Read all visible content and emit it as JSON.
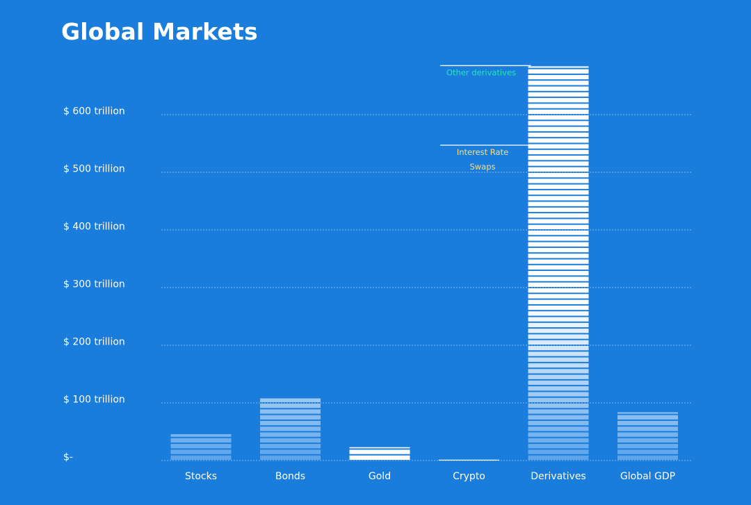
{
  "chart_data": {
    "type": "bar",
    "title": "Global Markets",
    "xlabel": "",
    "ylabel": "",
    "ylim": [
      0,
      690
    ],
    "yticks": [
      0,
      100,
      200,
      300,
      400,
      500,
      600
    ],
    "ytick_labels": [
      "$-",
      "$ 100 trillion",
      "$ 200 trillion",
      "$ 300 trillion",
      "$ 400 trillion",
      "$ 500 trillion",
      "$ 600 trillion"
    ],
    "categories": [
      "Stocks",
      "Bonds",
      "Gold",
      "Crypto",
      "Derivatives",
      "Global GDP"
    ],
    "values": [
      47,
      109,
      22,
      1.5,
      685,
      85
    ],
    "grid": true,
    "bar_style": "stacked horizontal stripes, each stripe ≈ $10 trillion",
    "annotations": [
      {
        "text": "Other derivatives",
        "category": "Derivatives",
        "y": 685,
        "color": "#22e6b8"
      },
      {
        "text": "Interest Rate",
        "category": "Derivatives",
        "y": 547,
        "color": "#f2e08a"
      },
      {
        "text": "Swaps",
        "category": "Derivatives",
        "y": 547,
        "color": "#f2e08a"
      }
    ]
  },
  "colors": {
    "background": "#1a7ddb",
    "bar_top": "#ffffff",
    "bar_bottom": "#5ea5ec",
    "text": "#ffffff"
  }
}
